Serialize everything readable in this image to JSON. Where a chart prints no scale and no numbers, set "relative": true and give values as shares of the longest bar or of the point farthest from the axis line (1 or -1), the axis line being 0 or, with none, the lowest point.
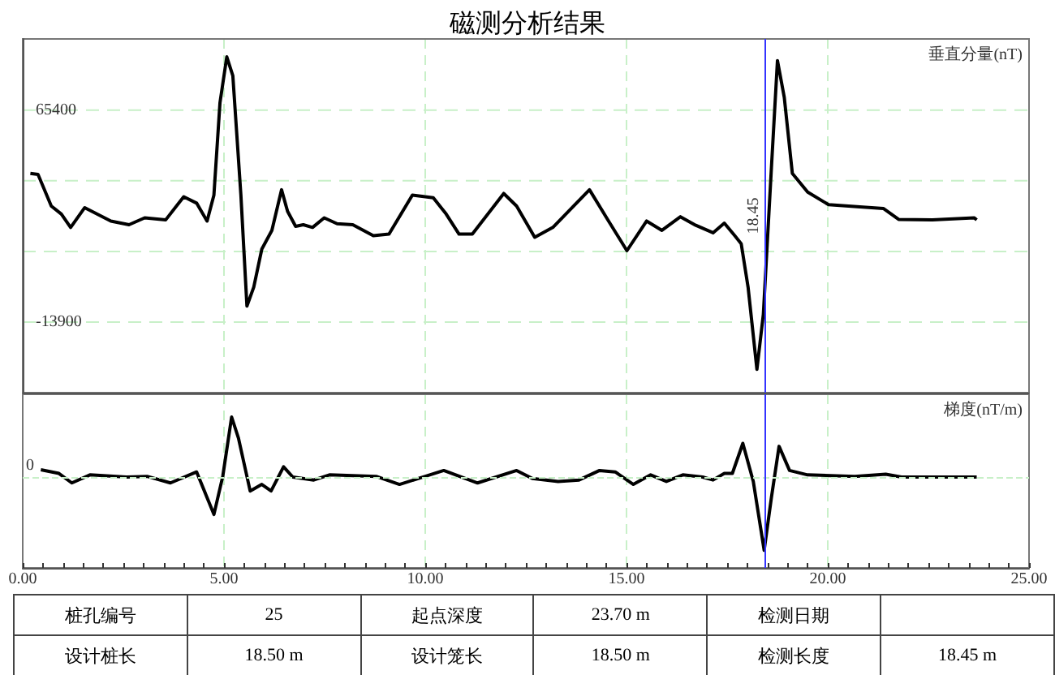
{
  "chart_data": [
    {
      "type": "line",
      "title": "磁测分析结果",
      "ylabel": "垂直分量(nT)",
      "x": [
        0.19,
        0.38,
        0.71,
        0.96,
        1.19,
        1.54,
        2.19,
        2.64,
        3.03,
        3.55,
        4.0,
        4.32,
        4.58,
        4.75,
        4.9,
        5.07,
        5.22,
        5.42,
        5.57,
        5.74,
        5.94,
        6.19,
        6.43,
        6.58,
        6.78,
        6.97,
        7.2,
        7.49,
        7.81,
        8.2,
        8.71,
        9.1,
        9.68,
        10.2,
        10.52,
        10.84,
        11.17,
        11.95,
        12.27,
        12.72,
        13.17,
        14.08,
        14.53,
        15.01,
        15.5,
        15.88,
        16.34,
        16.72,
        17.15,
        17.43,
        17.69,
        17.85,
        18.02,
        18.24,
        18.4,
        18.6,
        18.75,
        18.92,
        19.12,
        19.5,
        20.02,
        20.8,
        21.38,
        21.76,
        22.6,
        23.64,
        23.7
      ],
      "series": [
        {
          "color": "#000000",
          "values": [
            41700,
            41300,
            29500,
            26500,
            21500,
            28900,
            23900,
            22500,
            25100,
            24300,
            33000,
            30600,
            23900,
            33600,
            68100,
            85300,
            78200,
            33600,
            -7900,
            -800,
            13400,
            20400,
            35600,
            27500,
            21900,
            22500,
            21500,
            25100,
            22900,
            22500,
            18400,
            19000,
            33600,
            32600,
            26500,
            19000,
            19000,
            34200,
            29500,
            17800,
            21500,
            35600,
            24500,
            12800,
            23900,
            20400,
            25500,
            22300,
            19500,
            23100,
            18400,
            15400,
            -800,
            -31600,
            -10900,
            43800,
            83900,
            70100,
            41700,
            34700,
            30000,
            29200,
            28600,
            24500,
            24300,
            25100,
            24300
          ]
        }
      ],
      "xlim": [
        0,
        25
      ],
      "xticks": [
        0,
        5,
        10,
        15,
        20,
        25
      ],
      "ylim": [
        -40300,
        92000
      ],
      "yticks": [
        65400,
        {
          "value": 38967,
          "label": null
        },
        {
          "value": 12533,
          "label": null
        },
        -13900
      ],
      "tick_labels": "y",
      "grid": true,
      "ref_lines": [
        {
          "axis": "x",
          "value": 18.45,
          "label": "18.45",
          "color": "#3333ff"
        }
      ]
    },
    {
      "type": "line",
      "ylabel": "梯度(nT/m)",
      "relative": true,
      "x": [
        0.45,
        0.9,
        1.22,
        1.67,
        2.58,
        3.09,
        3.67,
        4.32,
        4.75,
        4.97,
        5.19,
        5.36,
        5.65,
        5.94,
        6.17,
        6.48,
        6.71,
        7.23,
        7.62,
        8.78,
        9.36,
        10.0,
        10.46,
        11.3,
        12.27,
        12.66,
        13.3,
        13.82,
        14.33,
        14.72,
        15.17,
        15.6,
        15.99,
        16.4,
        16.89,
        17.15,
        17.43,
        17.63,
        17.89,
        18.15,
        18.42,
        18.6,
        18.79,
        19.05,
        19.5,
        20.67,
        21.44,
        21.83,
        23.7
      ],
      "series": [
        {
          "color": "#000000",
          "values": [
            0.1,
            0.05,
            -0.08,
            0.03,
            0,
            0.01,
            -0.08,
            0.07,
            -0.51,
            0.01,
            0.82,
            0.53,
            -0.19,
            -0.1,
            -0.19,
            0.14,
            0,
            -0.04,
            0.03,
            0.01,
            -0.1,
            0.01,
            0.09,
            -0.08,
            0.09,
            -0.02,
            -0.06,
            -0.04,
            0.09,
            0.07,
            -0.1,
            0.03,
            -0.06,
            0.03,
            0,
            -0.04,
            0.05,
            0.05,
            0.46,
            -0.06,
            -1,
            -0.28,
            0.42,
            0.09,
            0.03,
            0.01,
            0.04,
            0,
            0
          ]
        }
      ],
      "xlim": [
        0,
        25
      ],
      "xticks": [
        {
          "value": 0,
          "label": "0.00"
        },
        {
          "value": 0.5,
          "label": null
        },
        {
          "value": 1,
          "label": null
        },
        {
          "value": 1.5,
          "label": null
        },
        {
          "value": 2,
          "label": null
        },
        {
          "value": 2.5,
          "label": null
        },
        {
          "value": 3,
          "label": null
        },
        {
          "value": 3.5,
          "label": null
        },
        {
          "value": 4,
          "label": null
        },
        {
          "value": 4.5,
          "label": null
        },
        {
          "value": 5,
          "label": "5.00"
        },
        {
          "value": 5.5,
          "label": null
        },
        {
          "value": 6,
          "label": null
        },
        {
          "value": 6.5,
          "label": null
        },
        {
          "value": 7,
          "label": null
        },
        {
          "value": 7.5,
          "label": null
        },
        {
          "value": 8,
          "label": null
        },
        {
          "value": 8.5,
          "label": null
        },
        {
          "value": 9,
          "label": null
        },
        {
          "value": 9.5,
          "label": null
        },
        {
          "value": 10,
          "label": "10.00"
        },
        {
          "value": 10.5,
          "label": null
        },
        {
          "value": 11,
          "label": null
        },
        {
          "value": 11.5,
          "label": null
        },
        {
          "value": 12,
          "label": null
        },
        {
          "value": 12.5,
          "label": null
        },
        {
          "value": 13,
          "label": null
        },
        {
          "value": 13.5,
          "label": null
        },
        {
          "value": 14,
          "label": null
        },
        {
          "value": 14.5,
          "label": null
        },
        {
          "value": 15,
          "label": "15.00"
        },
        {
          "value": 15.5,
          "label": null
        },
        {
          "value": 16,
          "label": null
        },
        {
          "value": 16.5,
          "label": null
        },
        {
          "value": 17,
          "label": null
        },
        {
          "value": 17.5,
          "label": null
        },
        {
          "value": 18,
          "label": null
        },
        {
          "value": 18.5,
          "label": null
        },
        {
          "value": 19,
          "label": null
        },
        {
          "value": 19.5,
          "label": null
        },
        {
          "value": 20,
          "label": "20.00"
        },
        {
          "value": 20.5,
          "label": null
        },
        {
          "value": 21,
          "label": null
        },
        {
          "value": 21.5,
          "label": null
        },
        {
          "value": 22,
          "label": null
        },
        {
          "value": 22.5,
          "label": null
        },
        {
          "value": 23,
          "label": null
        },
        {
          "value": 23.5,
          "label": null
        },
        {
          "value": 24,
          "label": null
        },
        {
          "value": 24.5,
          "label": null
        },
        {
          "value": 25,
          "label": "25.00"
        }
      ],
      "tick_labels": "x",
      "grid": "x",
      "ref_lines": [
        {
          "axis": "y",
          "value": 0,
          "label": "0",
          "color": "#c8f0c8",
          "line_style": "dashed"
        },
        {
          "axis": "x",
          "value": 18.45,
          "color": "#3333ff"
        }
      ],
      "annotations": [
        "桩孔编号",
        "25",
        "起点深度",
        "23.70 m",
        "检测日期",
        "设计桩长",
        "18.50 m",
        "设计笼长",
        "18.50 m",
        "检测长度",
        "18.45 m"
      ]
    }
  ]
}
